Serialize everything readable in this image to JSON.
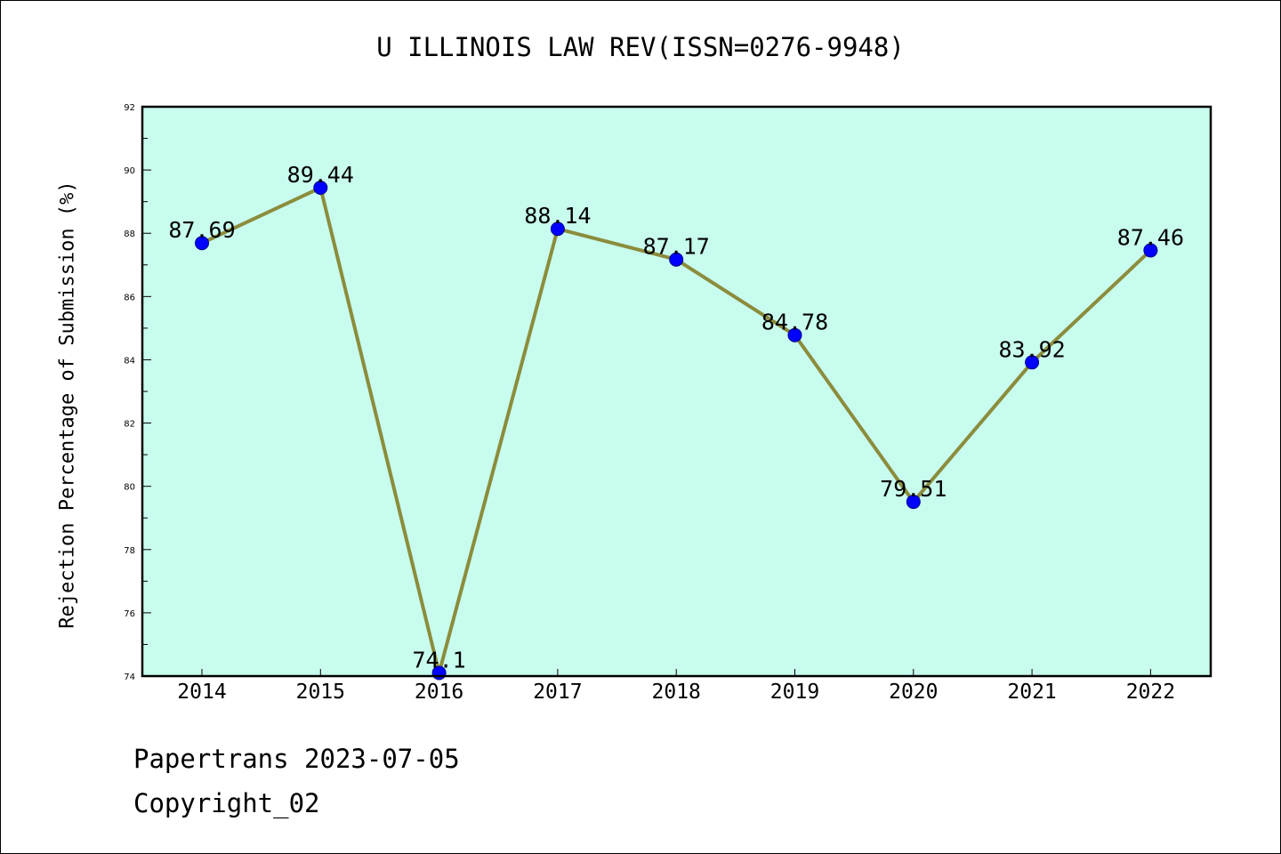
{
  "chart_data": {
    "type": "line",
    "title": "U ILLINOIS LAW REV(ISSN=0276-9948)",
    "ylabel": "Rejection Percentage of Submission (%)",
    "xlabel": "",
    "categories": [
      "2014",
      "2015",
      "2016",
      "2017",
      "2018",
      "2019",
      "2020",
      "2021",
      "2022"
    ],
    "series": [
      {
        "values": [
          87.69,
          89.44,
          74.1,
          88.14,
          87.17,
          84.78,
          79.51,
          83.92,
          87.46
        ],
        "labels": [
          "87.69",
          "89.44",
          "74.1",
          "88.14",
          "87.17",
          "84.78",
          "79.51",
          "83.92",
          "87.46"
        ]
      }
    ],
    "ylim": [
      74,
      92
    ],
    "yticks": [
      "74",
      "76",
      "78",
      "80",
      "82",
      "84",
      "86",
      "88",
      "90",
      "92"
    ],
    "grid": false,
    "legend": "none",
    "colors": {
      "plot_background": "#c8fcee",
      "line": "#8b8c3c",
      "marker": "#0000ff"
    }
  },
  "footer": {
    "line1": "Papertrans 2023-07-05",
    "line2": "Copyright_02"
  }
}
